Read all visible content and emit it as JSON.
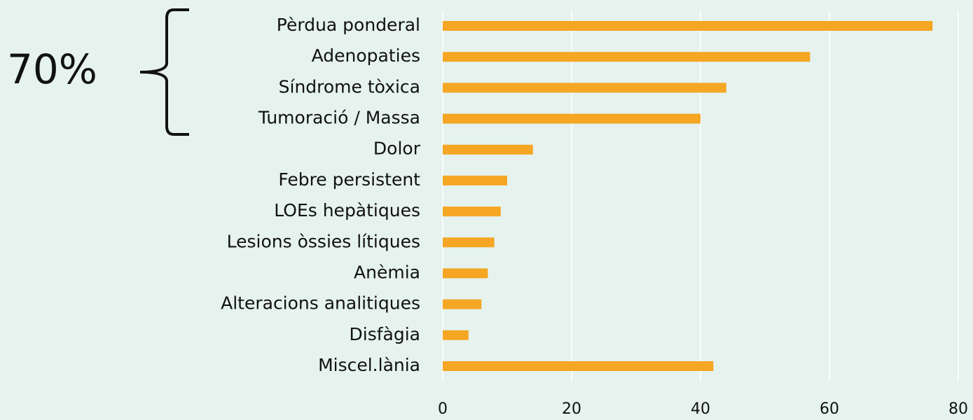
{
  "chart_data": {
    "type": "bar",
    "orientation": "horizontal",
    "annotation": "70%",
    "categories": [
      "Pèrdua ponderal",
      "Adenopaties",
      "Síndrome tòxica",
      "Tumoració / Massa",
      "Dolor",
      "Febre persistent",
      "LOEs hepàtiques",
      "Lesions òssies lítiques",
      "Anèmia",
      "Alteracions analitiques",
      "Disfàgia",
      "Miscel.lània"
    ],
    "values": [
      76,
      57,
      44,
      40,
      14,
      10,
      9,
      8,
      7,
      6,
      4,
      42
    ],
    "color": "#f5a623",
    "xlim": [
      0,
      80
    ],
    "xticks": [
      0,
      20,
      40,
      60,
      80
    ],
    "grid": true
  }
}
